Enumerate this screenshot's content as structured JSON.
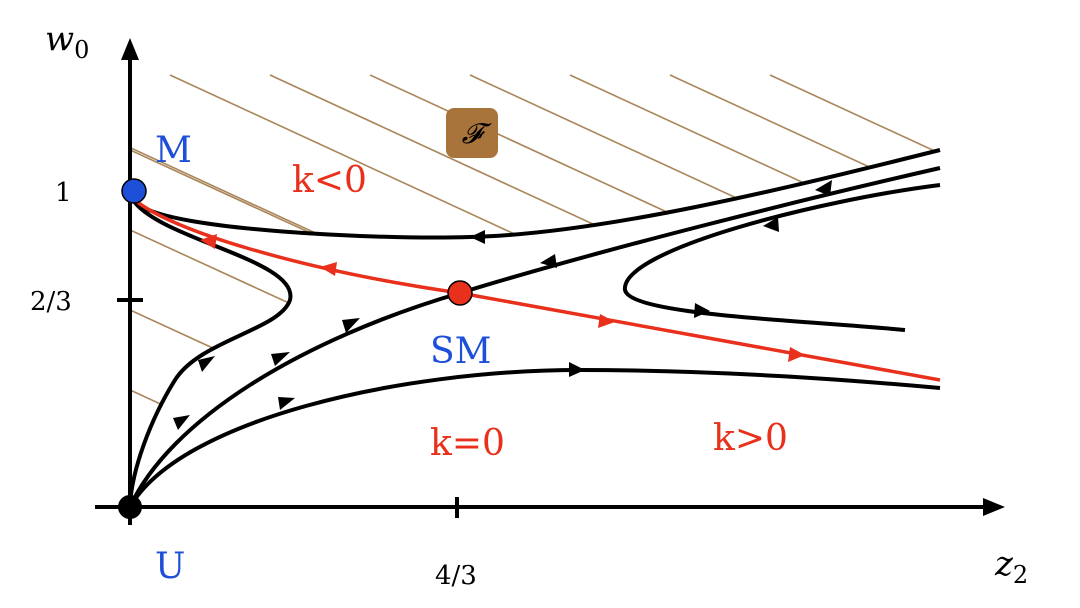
{
  "axes": {
    "y_label": {
      "text": "w",
      "sub": "0"
    },
    "x_label": {
      "text": "z",
      "sub": "2"
    },
    "y_ticks": [
      "1",
      "2/3"
    ],
    "x_ticks": [
      "4/3"
    ]
  },
  "points": {
    "M": "M",
    "SM": "SM",
    "U": "U"
  },
  "regions": {
    "k_neg": "k<0",
    "k_zero": "k=0",
    "k_pos": "k>0",
    "forbidden": "𝓕"
  }
}
